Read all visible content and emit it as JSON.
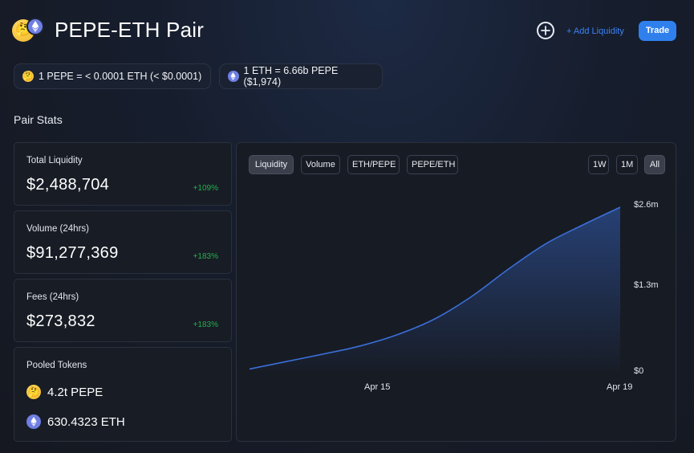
{
  "header": {
    "title": "PEPE-ETH Pair",
    "pepe_icon": "thinking-face-emoji",
    "eth_icon": "ethereum-icon",
    "add_icon": "plus-circle-icon",
    "add_liquidity_label": "+ Add Liquidity",
    "trade_label": "Trade",
    "accent_color": "#2f80ed"
  },
  "prices": {
    "pepe_price": "1 PEPE = < 0.0001 ETH (< $0.0001)",
    "eth_price": "1 ETH = 6.66b PEPE ($1,974)"
  },
  "stats": {
    "section_title": "Pair Stats",
    "total_liquidity": {
      "label": "Total Liquidity",
      "value": "$2,488,704",
      "change": "+109%"
    },
    "volume": {
      "label": "Volume (24hrs)",
      "value": "$91,277,369",
      "change": "+183%"
    },
    "fees": {
      "label": "Fees (24hrs)",
      "value": "$273,832",
      "change": "+183%"
    },
    "pooled": {
      "label": "Pooled Tokens",
      "pepe_amount": "4.2t PEPE",
      "eth_amount": "630.4323 ETH"
    },
    "positive_color": "#22b24c"
  },
  "chart_tabs": [
    "Liquidity",
    "Volume",
    "ETH/PEPE",
    "PEPE/ETH"
  ],
  "active_chart_tab": "Liquidity",
  "range_tabs": [
    "1W",
    "1M",
    "All"
  ],
  "active_range_tab": "All",
  "chart_data": {
    "type": "area",
    "title": "",
    "xlabel": "",
    "ylabel": "",
    "x_tick_labels": [
      "Apr 15",
      "Apr 19"
    ],
    "y_tick_labels": [
      "$2.6m",
      "$1.3m",
      "$0"
    ],
    "ylim": [
      0,
      2600000
    ],
    "y_ticks": [
      2600000,
      1300000,
      0
    ],
    "x": [
      0,
      0.1,
      0.2,
      0.3,
      0.4,
      0.5,
      0.6,
      0.7,
      0.8,
      0.9,
      1.0
    ],
    "y": [
      20000,
      140000,
      260000,
      390000,
      570000,
      820000,
      1180000,
      1620000,
      2020000,
      2320000,
      2600000
    ],
    "x_tick_positions": [
      0.34,
      1.0
    ],
    "series_color": "#3a6fd8",
    "grid": false
  }
}
